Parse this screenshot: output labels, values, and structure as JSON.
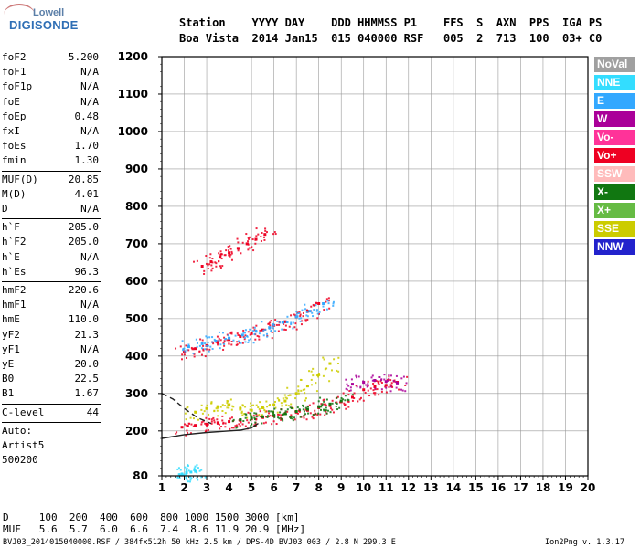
{
  "logo": {
    "line1": "Lowell",
    "line2": "DIGISONDE"
  },
  "header": {
    "row1": "Station    YYYY DAY    DDD HHMMSS P1    FFS  S  AXN  PPS  IGA PS",
    "row2": "Boa Vista  2014 Jan15  015 040000 RSF   005  2  713  100  03+ C0"
  },
  "params": [
    {
      "k": "foF2",
      "v": "5.200"
    },
    {
      "k": "foF1",
      "v": "N/A"
    },
    {
      "k": "foF1p",
      "v": "N/A"
    },
    {
      "k": "foE",
      "v": "N/A"
    },
    {
      "k": "foEp",
      "v": "0.48"
    },
    {
      "k": "fxI",
      "v": "N/A"
    },
    {
      "k": "foEs",
      "v": "1.70"
    },
    {
      "k": "fmin",
      "v": "1.30"
    },
    {
      "k": "MUF(D)",
      "v": "20.85"
    },
    {
      "k": "M(D)",
      "v": "4.01"
    },
    {
      "k": "D",
      "v": "N/A"
    },
    {
      "k": "h`F",
      "v": "205.0"
    },
    {
      "k": "h`F2",
      "v": "205.0"
    },
    {
      "k": "h`E",
      "v": "N/A"
    },
    {
      "k": "h`Es",
      "v": "96.3"
    },
    {
      "k": "hmF2",
      "v": "220.6"
    },
    {
      "k": "hmF1",
      "v": "N/A"
    },
    {
      "k": "hmE",
      "v": "110.0"
    },
    {
      "k": "yF2",
      "v": "21.3"
    },
    {
      "k": "yF1",
      "v": "N/A"
    },
    {
      "k": "yE",
      "v": "20.0"
    },
    {
      "k": "B0",
      "v": "22.5"
    },
    {
      "k": "B1",
      "v": "1.67"
    }
  ],
  "clevel": {
    "k": "C-level",
    "v": "44"
  },
  "auto": [
    "Auto:",
    "Artist5",
    "500200"
  ],
  "legend": [
    {
      "name": "NoVal",
      "color": "#a0a0a0"
    },
    {
      "name": "NNE",
      "color": "#33ddff"
    },
    {
      "name": "E",
      "color": "#33a8ff"
    },
    {
      "name": "W",
      "color": "#aa0099"
    },
    {
      "name": "Vo-",
      "color": "#ff3399"
    },
    {
      "name": "Vo+",
      "color": "#ee0022"
    },
    {
      "name": "SSW",
      "color": "#ffbbbb"
    },
    {
      "name": "X-",
      "color": "#117711"
    },
    {
      "name": "X+",
      "color": "#66bb44"
    },
    {
      "name": "SSE",
      "color": "#cccc00"
    },
    {
      "name": "NNW",
      "color": "#2222cc"
    }
  ],
  "bottom": {
    "d_row": "D     100  200  400  600  800 1000 1500 3000 [km]",
    "muf_row": "MUF   5.6  5.7  6.0  6.6  7.4  8.6 11.9 20.9 [MHz]",
    "footer_left": "BVJ03_2014015040000.RSF / 384fx512h 50 kHz 2.5 km / DPS-4D BVJ03 003 / 2.8 N 299.3 E",
    "footer_right": "Ion2Png v. 1.3.17"
  },
  "chart_data": {
    "type": "scatter",
    "title": "",
    "xlabel": "",
    "ylabel": "",
    "xlim": [
      1,
      20
    ],
    "ylim": [
      80,
      1200
    ],
    "x_ticks": [
      1,
      2,
      3,
      4,
      5,
      6,
      7,
      8,
      9,
      10,
      11,
      12,
      13,
      14,
      15,
      16,
      17,
      18,
      19,
      20
    ],
    "y_ticks": [
      80,
      200,
      300,
      400,
      500,
      600,
      700,
      800,
      900,
      1000,
      1100,
      1200
    ],
    "grid": true,
    "legend_placement": "right",
    "series": [
      {
        "name": "Vo+",
        "traces": [
          {
            "x": [
              1.9,
              2.5,
              3.0,
              3.5,
              4.0,
              4.5,
              5.0,
              5.5,
              6.0,
              6.5,
              7.0,
              7.5,
              8.0,
              8.5,
              9.0,
              9.5,
              10.0,
              10.5,
              11.0,
              11.5
            ],
            "y": [
              210,
              215,
              218,
              222,
              225,
              228,
              232,
              236,
              240,
              246,
              250,
              255,
              262,
              268,
              278,
              290,
              310,
              318,
              322,
              330
            ]
          },
          {
            "x": [
              2.0,
              2.5,
              3.0,
              3.5,
              4.0,
              4.5,
              5.0,
              5.5,
              6.0,
              6.5,
              7.0,
              7.5,
              8.0
            ],
            "y": [
              412,
              420,
              428,
              436,
              444,
              452,
              460,
              470,
              482,
              492,
              505,
              520,
              540
            ]
          },
          {
            "x": [
              2.8,
              3.2,
              3.6,
              4.0,
              4.4,
              4.8,
              5.2,
              5.6
            ],
            "y": [
              640,
              652,
              664,
              676,
              688,
              700,
              712,
              725
            ]
          }
        ]
      },
      {
        "name": "E",
        "traces": [
          {
            "x": [
              2.2,
              2.8,
              3.4,
              4.0,
              4.6,
              5.2,
              5.8,
              6.4,
              7.0,
              7.6,
              8.2
            ],
            "y": [
              425,
              433,
              440,
              448,
              456,
              466,
              476,
              490,
              505,
              520,
              540
            ]
          }
        ]
      },
      {
        "name": "SSE",
        "traces": [
          {
            "x": [
              2.5,
              3.0,
              3.5,
              4.0,
              4.5,
              5.0,
              5.5,
              6.0,
              6.5,
              7.0,
              7.5,
              8.0,
              8.5
            ],
            "y": [
              250,
              260,
              265,
              270,
              260,
              255,
              262,
              270,
              280,
              300,
              320,
              350,
              380
            ]
          }
        ]
      },
      {
        "name": "X-",
        "traces": [
          {
            "x": [
              4.5,
              5.0,
              5.5,
              6.0,
              6.5,
              7.0,
              7.5,
              8.0,
              8.5,
              9.0
            ],
            "y": [
              230,
              234,
              238,
              242,
              246,
              252,
              258,
              265,
              272,
              280
            ]
          }
        ]
      },
      {
        "name": "W",
        "traces": [
          {
            "x": [
              9.5,
              10.0,
              10.5,
              11.0,
              11.5
            ],
            "y": [
              325,
              330,
              335,
              332,
              328
            ]
          }
        ]
      },
      {
        "name": "NNE",
        "traces": [
          {
            "x": [
              1.9,
              2.1,
              2.3,
              2.5
            ],
            "y": [
              85,
              88,
              90,
              92
            ]
          }
        ]
      }
    ],
    "profile": {
      "solid": {
        "x": [
          1.0,
          2.0,
          3.0,
          4.0,
          4.5,
          5.0,
          5.3
        ],
        "y": [
          180,
          190,
          196,
          200,
          202,
          208,
          220
        ]
      },
      "dashed": {
        "x": [
          1.0,
          1.5,
          2.0,
          2.6,
          3.2
        ],
        "y": [
          300,
          285,
          260,
          235,
          220
        ]
      }
    }
  }
}
